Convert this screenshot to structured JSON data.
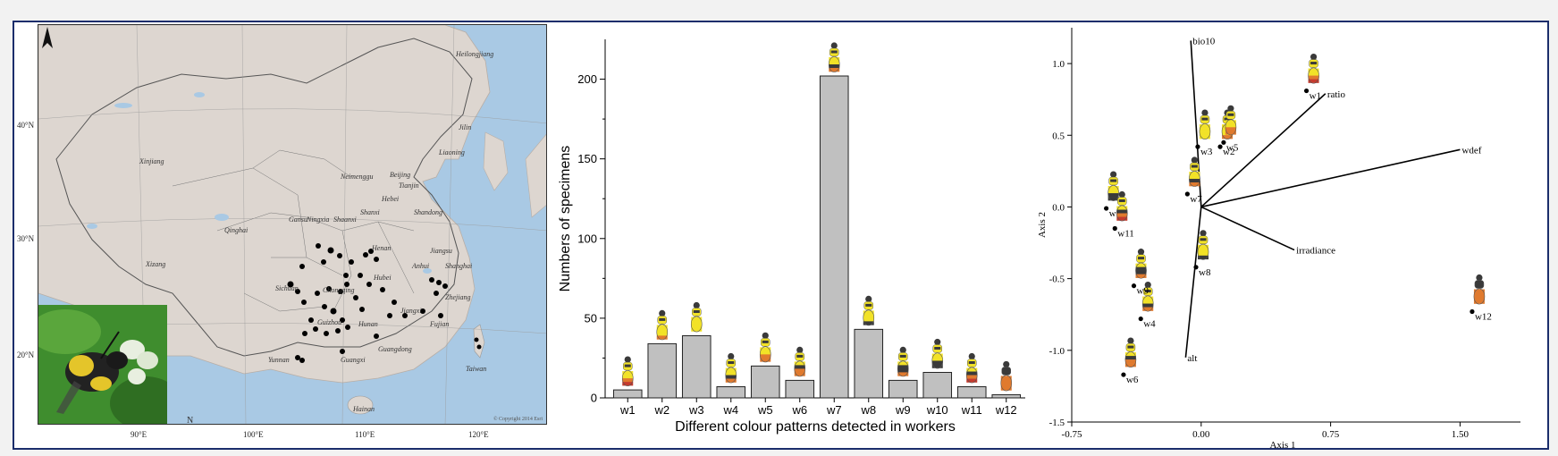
{
  "map": {
    "latitude_labels": [
      "40°N",
      "30°N",
      "20°N"
    ],
    "longitude_labels": [
      "90°E",
      "100°E",
      "110°E",
      "120°E"
    ],
    "province_labels": [
      "Heilongjiang",
      "Jilin",
      "Liaoning",
      "Xinjiang",
      "Neimenggu",
      "Beijing",
      "Tianjin",
      "Hebei",
      "Shandong",
      "Shanxi",
      "Shaanxi",
      "Ningxia",
      "Gansu",
      "Qinghai",
      "Xizang",
      "Henan",
      "Jiangsu",
      "Shanghai",
      "Anhui",
      "Hubei",
      "Zhejiang",
      "Sichuan",
      "Chongqing",
      "Guizhou",
      "Hunan",
      "Jiangxi",
      "Fujian",
      "Yunnan",
      "Guangxi",
      "Guangdong",
      "Hainan",
      "Taiwan"
    ],
    "copyright": "© Copyright 2014 Esri",
    "north_label": "N"
  },
  "colors": {
    "frame": "#1b2d6b",
    "bar_fill": "#c0c0c0",
    "bar_stroke": "#222222",
    "land": "#ddd6d0",
    "sea": "#a9c9e4",
    "yellow": "#f2e227",
    "orange": "#e07a2e",
    "dark": "#3a3a3a",
    "red": "#c63b2e"
  },
  "chart_data": [
    {
      "type": "bar",
      "categories": [
        "w1",
        "w2",
        "w3",
        "w4",
        "w5",
        "w6",
        "w7",
        "w8",
        "w9",
        "w10",
        "w11",
        "w12"
      ],
      "values": [
        5,
        34,
        39,
        7,
        20,
        11,
        202,
        43,
        11,
        16,
        7,
        2
      ],
      "title": "",
      "xlabel": "Different colour patterns detected in workers",
      "ylabel": "Numbers of specimens",
      "ylim": [
        0,
        225
      ],
      "yticks": [
        0,
        50,
        100,
        150,
        200
      ],
      "grid": false
    },
    {
      "type": "scatter",
      "points": [
        {
          "label": "w1",
          "x": 0.61,
          "y": 0.81
        },
        {
          "label": "w2",
          "x": 0.11,
          "y": 0.42
        },
        {
          "label": "w3",
          "x": -0.02,
          "y": 0.42
        },
        {
          "label": "w4",
          "x": -0.35,
          "y": -0.78
        },
        {
          "label": "w5",
          "x": 0.13,
          "y": 0.45
        },
        {
          "label": "w6",
          "x": -0.45,
          "y": -1.17
        },
        {
          "label": "w7",
          "x": -0.08,
          "y": 0.09
        },
        {
          "label": "w8",
          "x": -0.03,
          "y": -0.42
        },
        {
          "label": "w9",
          "x": -0.39,
          "y": -0.55
        },
        {
          "label": "w10",
          "x": -0.55,
          "y": -0.01
        },
        {
          "label": "w11",
          "x": -0.5,
          "y": -0.15
        },
        {
          "label": "w12",
          "x": 1.57,
          "y": -0.73
        }
      ],
      "vectors": [
        {
          "label": "bio10",
          "x": -0.06,
          "y": 1.16
        },
        {
          "label": "ratio",
          "x": 0.72,
          "y": 0.79
        },
        {
          "label": "wdef",
          "x": 1.5,
          "y": 0.4
        },
        {
          "label": "irradiance",
          "x": 0.54,
          "y": -0.3
        },
        {
          "label": "alt",
          "x": -0.09,
          "y": -1.05
        }
      ],
      "xlabel": "Axis 1",
      "ylabel": "Axis 2",
      "xlim": [
        -0.75,
        1.85
      ],
      "ylim": [
        -1.5,
        1.25
      ],
      "xticks": [
        "-0.75",
        "0.00",
        "0.75",
        "1.50"
      ],
      "yticks": [
        "1.0",
        "0.5",
        "0.0",
        "-0.5",
        "-1.0",
        "-1.5"
      ],
      "grid": false
    }
  ]
}
